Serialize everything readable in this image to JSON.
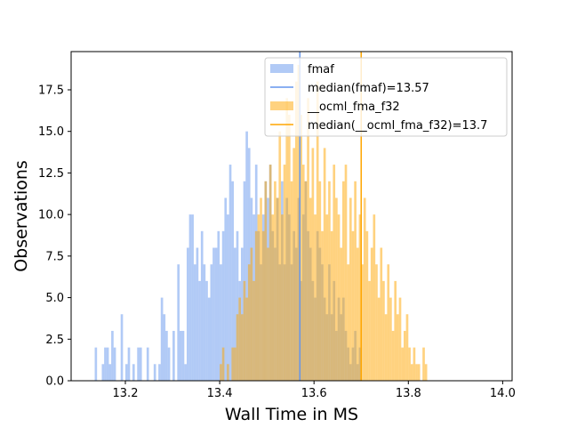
{
  "chart_data": {
    "type": "histogram",
    "xlabel": "Wall Time in MS",
    "ylabel": "Observations",
    "xlim": [
      13.085,
      14.02
    ],
    "ylim": [
      0,
      19.8
    ],
    "xticks": [
      13.2,
      13.4,
      13.6,
      13.8,
      14.0
    ],
    "xtick_labels": [
      "13.2",
      "13.4",
      "13.6",
      "13.8",
      "14.0"
    ],
    "yticks": [
      0,
      2.5,
      5.0,
      7.5,
      10.0,
      12.5,
      15.0,
      17.5
    ],
    "ytick_labels": [
      "0.0",
      "2.5",
      "5.0",
      "7.5",
      "10.0",
      "12.5",
      "15.0",
      "17.5"
    ],
    "legend_position": "top-right",
    "series": [
      {
        "name": "fmaf",
        "type": "hist",
        "color": "#6495ed",
        "alpha": 0.5,
        "bin_start": 13.135,
        "bin_width": 0.005,
        "counts": [
          2,
          0,
          0,
          1,
          2,
          2,
          1,
          3,
          2,
          0,
          0,
          4,
          0,
          1,
          2,
          0,
          1,
          0,
          2,
          2,
          0,
          0,
          2,
          0,
          0,
          1,
          0,
          1,
          5,
          4,
          3,
          2,
          0,
          3,
          0,
          7,
          3,
          3,
          1,
          8,
          10,
          10,
          7,
          8,
          6,
          9,
          7,
          6,
          5,
          7,
          8,
          8,
          9,
          7,
          9,
          11,
          10,
          13,
          12,
          8,
          9,
          6,
          8,
          12,
          15,
          14,
          11,
          10,
          13,
          9,
          7,
          10,
          12,
          11,
          13,
          9,
          8,
          11,
          7,
          12,
          7,
          11,
          10,
          7,
          9,
          8,
          11,
          6,
          10,
          12,
          9,
          8,
          6,
          5,
          9,
          8,
          7,
          5,
          4,
          7,
          4,
          6,
          3,
          5,
          4,
          5,
          3,
          2,
          1,
          2,
          3,
          1,
          2
        ]
      },
      {
        "name": "median(fmaf)=13.57",
        "type": "vline",
        "color": "#6495ed",
        "x": 13.57
      },
      {
        "name": "__ocml_fma_f32",
        "type": "hist",
        "color": "#ffa500",
        "alpha": 0.5,
        "bin_start": 13.4,
        "bin_width": 0.005,
        "counts": [
          1,
          2,
          0,
          1,
          0,
          2,
          2,
          4,
          5,
          4,
          6,
          5,
          7,
          8,
          6,
          9,
          10,
          11,
          9,
          12,
          8,
          13,
          10,
          12,
          11,
          15,
          10,
          13,
          17,
          16,
          12,
          14,
          18,
          19,
          16,
          13,
          12,
          17,
          11,
          14,
          10,
          18,
          12,
          9,
          14,
          10,
          12,
          9,
          13,
          11,
          10,
          8,
          12,
          13,
          7,
          11,
          9,
          12,
          8,
          10,
          7,
          11,
          9,
          6,
          8,
          10,
          7,
          5,
          8,
          6,
          4,
          7,
          5,
          3,
          6,
          4,
          5,
          2,
          3,
          4,
          2,
          1,
          2,
          1,
          1,
          0,
          2,
          1
        ]
      },
      {
        "name": "median(__ocml_fma_f32)=13.7",
        "type": "vline",
        "color": "#ffa500",
        "x": 13.7
      }
    ]
  }
}
